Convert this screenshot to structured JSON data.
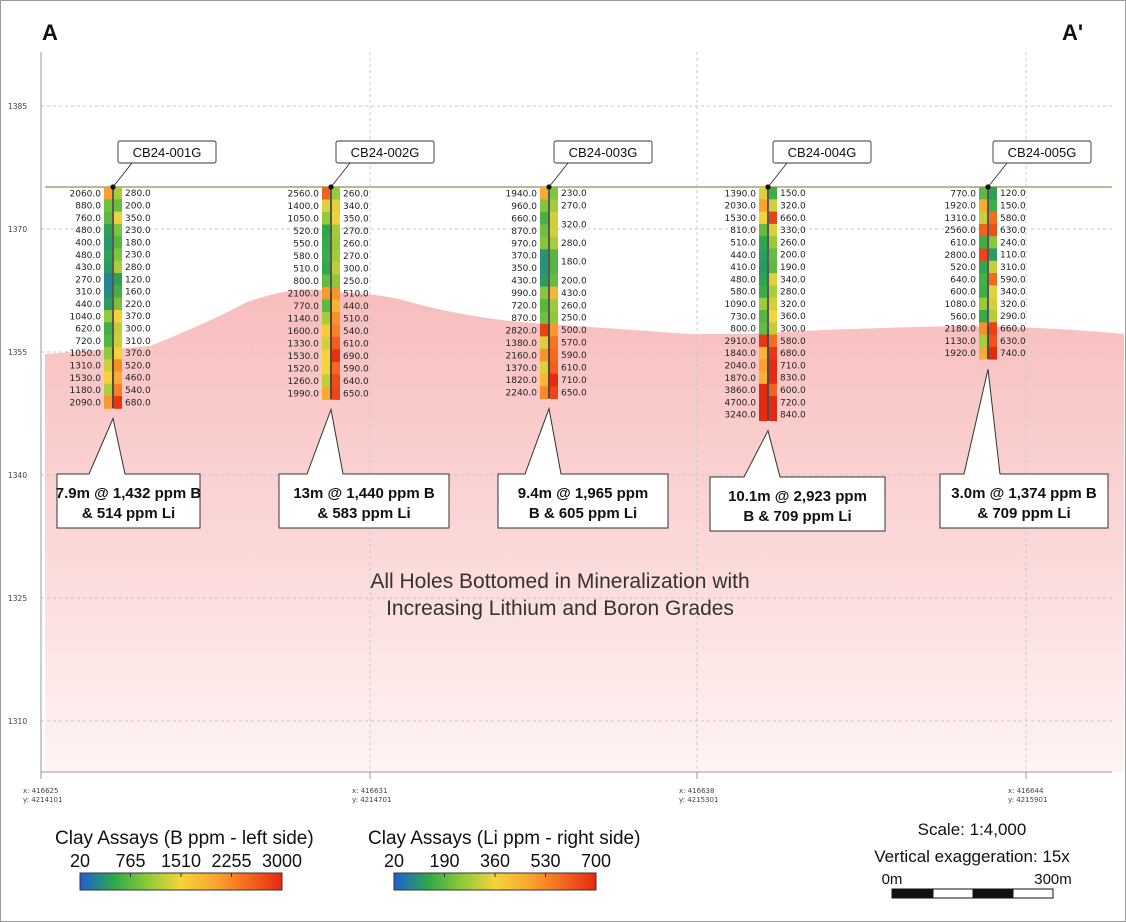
{
  "section": {
    "start_label": "A",
    "end_label": "A'"
  },
  "elevation_ticks": [
    "1385",
    "1370",
    "1355",
    "1340",
    "1325",
    "1310"
  ],
  "coordinates": [
    {
      "x": "x: 416625",
      "y": "y: 4214101"
    },
    {
      "x": "x: 416631",
      "y": "y: 4214701"
    },
    {
      "x": "x: 416638",
      "y": "y: 4215301"
    },
    {
      "x": "x: 416644",
      "y": "y: 4215901"
    }
  ],
  "holes": [
    {
      "name": "CB24-001G",
      "b": [
        "2060.0",
        "880.0",
        "760.0",
        "480.0",
        "400.0",
        "480.0",
        "430.0",
        "270.0",
        "310.0",
        "440.0",
        "1040.0",
        "620.0",
        "720.0",
        "1050.0",
        "1310.0",
        "1530.0",
        "1180.0",
        "2090.0"
      ],
      "li": [
        "280.0",
        "200.0",
        "350.0",
        "230.0",
        "180.0",
        "230.0",
        "280.0",
        "120.0",
        "160.0",
        "220.0",
        "370.0",
        "300.0",
        "310.0",
        "370.0",
        "520.0",
        "460.0",
        "540.0",
        "680.0"
      ],
      "callout": [
        "7.9m @ 1,432 ppm B",
        "& 514 ppm Li"
      ]
    },
    {
      "name": "CB24-002G",
      "b": [
        "2560.0",
        "1400.0",
        "1050.0",
        "520.0",
        "550.0",
        "580.0",
        "510.0",
        "800.0",
        "2100.0",
        "770.0",
        "1140.0",
        "1600.0",
        "1330.0",
        "1530.0",
        "1520.0",
        "1260.0",
        "1990.0"
      ],
      "li": [
        "260.0",
        "340.0",
        "350.0",
        "270.0",
        "260.0",
        "270.0",
        "300.0",
        "250.0",
        "510.0",
        "440.0",
        "510.0",
        "540.0",
        "610.0",
        "690.0",
        "590.0",
        "640.0",
        "650.0"
      ],
      "callout": [
        "13m @ 1,440 ppm B",
        "& 583 ppm Li"
      ]
    },
    {
      "name": "CB24-003G",
      "b": [
        "1940.0",
        "960.0",
        "660.0",
        "870.0",
        "970.0",
        "370.0",
        "350.0",
        "430.0",
        "990.0",
        "720.0",
        "870.0",
        "2820.0",
        "1380.0",
        "2160.0",
        "1370.0",
        "1820.0",
        "2240.0"
      ],
      "li": [
        "230.0",
        "270.0",
        "320.0",
        "",
        "280.0",
        "180.0",
        "",
        "200.0",
        "430.0",
        "260.0",
        "250.0",
        "500.0",
        "570.0",
        "590.0",
        "610.0",
        "710.0",
        "650.0"
      ],
      "callout": [
        "9.4m @  1,965 ppm",
        "B & 605 ppm Li"
      ]
    },
    {
      "name": "CB24-004G",
      "b": [
        "1390.0",
        "2030.0",
        "1530.0",
        "810.0",
        "510.0",
        "440.0",
        "410.0",
        "480.0",
        "580.0",
        "1090.0",
        "730.0",
        "800.0",
        "2910.0",
        "1840.0",
        "2040.0",
        "1870.0",
        "3860.0",
        "4700.0",
        "3240.0"
      ],
      "li": [
        "150.0",
        "320.0",
        "660.0",
        "330.0",
        "260.0",
        "200.0",
        "190.0",
        "340.0",
        "280.0",
        "320.0",
        "360.0",
        "300.0",
        "580.0",
        "680.0",
        "710.0",
        "830.0",
        "600.0",
        "720.0",
        "840.0"
      ],
      "callout": [
        "10.1m @ 2,923 ppm",
        "B & 709 ppm Li"
      ]
    },
    {
      "name": "CB24-005G",
      "b": [
        "770.0",
        "1920.0",
        "1310.0",
        "2560.0",
        "610.0",
        "2800.0",
        "520.0",
        "640.0",
        "600.0",
        "1080.0",
        "560.0",
        "2180.0",
        "1130.0",
        "1920.0"
      ],
      "li": [
        "120.0",
        "150.0",
        "580.0",
        "630.0",
        "240.0",
        "110.0",
        "310.0",
        "590.0",
        "340.0",
        "320.0",
        "290.0",
        "660.0",
        "630.0",
        "740.0"
      ],
      "callout": [
        "3.0m @ 1,374 ppm B",
        "& 709 ppm Li"
      ]
    }
  ],
  "annotation": [
    "All Holes Bottomed in Mineralization with",
    "Increasing Lithium and Boron Grades"
  ],
  "legend_b": {
    "title": "Clay Assays (B ppm - left side)",
    "ticks": [
      "20",
      "765",
      "1510",
      "2255",
      "3000"
    ],
    "min": 20,
    "max": 3000
  },
  "legend_li": {
    "title": "Clay Assays (Li ppm - right side)",
    "ticks": [
      "20",
      "190",
      "360",
      "530",
      "700"
    ],
    "min": 20,
    "max": 700
  },
  "scale": {
    "ratio": "Scale: 1:4,000",
    "exaggeration": "Vertical exaggeration: 15x",
    "left": "0m",
    "right": "300m"
  },
  "colors": {
    "mineralization": "#f9c4c4",
    "topo_line": "#9b8a52",
    "ramp": [
      "#1e5fd6",
      "#2fa84a",
      "#8cc93a",
      "#f5d43a",
      "#f9a530",
      "#f56a1e",
      "#e52a12"
    ]
  }
}
